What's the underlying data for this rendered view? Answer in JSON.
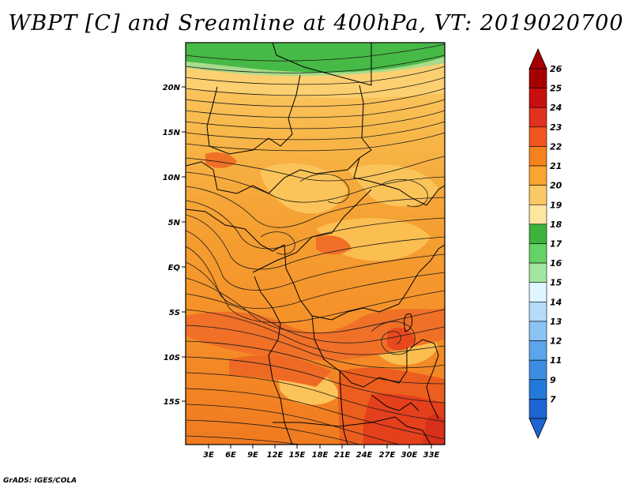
{
  "title": "WBPT [C] and Sreamline at 400hPa, VT: 2019020700",
  "credit": "GrADS: IGES/COLA",
  "map": {
    "lat_labels": [
      "20N",
      "15N",
      "10N",
      "5N",
      "EQ",
      "5S",
      "10S",
      "15S"
    ],
    "lon_labels": [
      "3E",
      "6E",
      "9E",
      "12E",
      "15E",
      "18E",
      "21E",
      "24E",
      "27E",
      "30E",
      "33E"
    ]
  },
  "colorbar": {
    "labels": [
      "26",
      "25",
      "24",
      "23",
      "22",
      "21",
      "20",
      "19",
      "18",
      "17",
      "16",
      "15",
      "14",
      "13",
      "12",
      "11",
      "9",
      "7"
    ],
    "colors": [
      "#a50000",
      "#c80f0f",
      "#e0321e",
      "#f0561e",
      "#f5821e",
      "#faa532",
      "#fcc864",
      "#fde6a0",
      "#3cb43c",
      "#64d264",
      "#a0e6a0",
      "#e0f5ff",
      "#b4dcfa",
      "#8cc3f5",
      "#5aa5eb",
      "#3c8ce1",
      "#2378dc",
      "#1e64d2"
    ]
  }
}
